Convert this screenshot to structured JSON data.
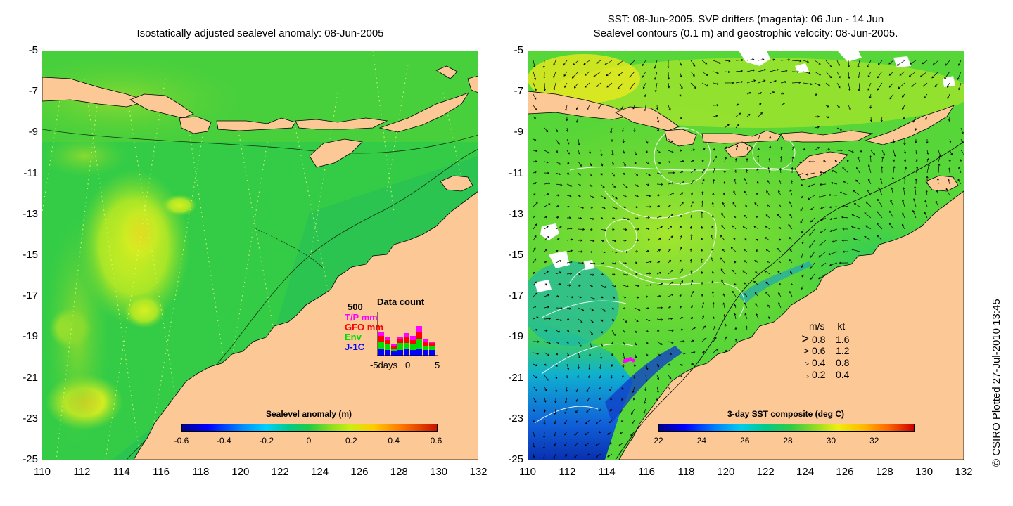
{
  "left_panel": {
    "title": "Isostatically adjusted sealevel anomaly: 08-Jun-2005",
    "y_ticks": [
      "-5",
      "-7",
      "-9",
      "-11",
      "-13",
      "-15",
      "-17",
      "-19",
      "-21",
      "-23",
      "-25"
    ],
    "x_ticks": [
      "110",
      "112",
      "114",
      "116",
      "118",
      "120",
      "122",
      "124",
      "126",
      "128",
      "130",
      "132"
    ],
    "colorbar": {
      "title": "Sealevel anomaly (m)",
      "ticks": [
        "-0.6",
        "-0.4",
        "-0.2",
        "0",
        "0.2",
        "0.4",
        "0.6"
      ]
    },
    "data_count": {
      "title": "Data count",
      "max_label": "500",
      "series": [
        {
          "name": "T/P mm",
          "color": "#ff00ff"
        },
        {
          "name": "GFO mm",
          "color": "#ff0000"
        },
        {
          "name": "Env",
          "color": "#00dd00"
        },
        {
          "name": "J-1C",
          "color": "#0000ff"
        }
      ],
      "x_labels": [
        "-5days",
        "0",
        "5"
      ]
    }
  },
  "right_panel": {
    "title_line1": "SST: 08-Jun-2005. SVP drifters (magenta): 06 Jun - 14 Jun",
    "title_line2": "Sealevel contours (0.1 m) and geostrophic velocity: 08-Jun-2005.",
    "y_ticks": [
      "-5",
      "-7",
      "-9",
      "-11",
      "-13",
      "-15",
      "-17",
      "-19",
      "-21",
      "-23",
      "-25"
    ],
    "x_ticks": [
      "110",
      "112",
      "114",
      "116",
      "118",
      "120",
      "122",
      "124",
      "126",
      "128",
      "130",
      "132"
    ],
    "colorbar": {
      "title": "3-day SST composite (deg C)",
      "ticks": [
        "22",
        "24",
        "26",
        "28",
        "30",
        "32"
      ]
    },
    "velocity_legend": {
      "header_ms": "m/s",
      "header_kt": "kt",
      "rows": [
        {
          "ms": "0.8",
          "kt": "1.6"
        },
        {
          "ms": "0.6",
          "kt": "1.2"
        },
        {
          "ms": "0.4",
          "kt": "0.8"
        },
        {
          "ms": "0.2",
          "kt": "0.4"
        }
      ]
    }
  },
  "credit": "© CSIRO Plotted 27-Jul-2010 13:45",
  "colors": {
    "land": "#fcc896",
    "ocean_base": "#22cc44",
    "sst_base": "#55d633"
  }
}
